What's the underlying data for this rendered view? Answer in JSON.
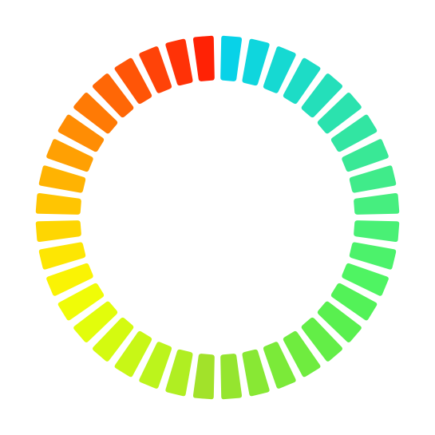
{
  "color_ring": {
    "segment_count": 40,
    "direction": "clockwise",
    "start_position": "top",
    "segment_shape": "rounded-trapezoid",
    "colors": [
      "#08D2E8",
      "#0FD6DD",
      "#16D9D2",
      "#1DDCC6",
      "#24DFBA",
      "#2BE2AE",
      "#32E5A2",
      "#39E896",
      "#40EB8A",
      "#46EE7F",
      "#49F075",
      "#4CF26B",
      "#4FF462",
      "#53F258",
      "#59F04F",
      "#63EE47",
      "#6FEC3F",
      "#7BEA39",
      "#88E834",
      "#95E52F",
      "#A2E22A",
      "#B0EE22",
      "#BCF41C",
      "#C8F716",
      "#D4FA10",
      "#E2FD0B",
      "#F0FC07",
      "#FAF304",
      "#FDE603",
      "#FED602",
      "#FFC502",
      "#FFB302",
      "#FFA003",
      "#FF8D04",
      "#FF7A05",
      "#FF6706",
      "#FF5507",
      "#FF4308",
      "#FF3207",
      "#FF2205"
    ]
  }
}
